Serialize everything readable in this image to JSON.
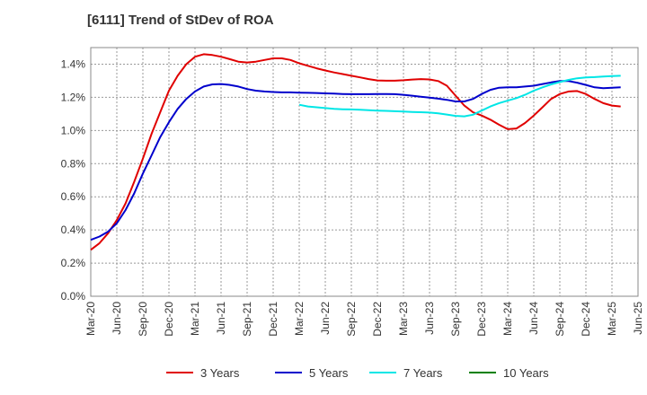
{
  "chart_data": {
    "type": "line",
    "title": "[6111]  Trend of StDev of ROA",
    "xlabel": "",
    "ylabel": "",
    "x_ticks": [
      "Mar-20",
      "Jun-20",
      "Sep-20",
      "Dec-20",
      "Mar-21",
      "Jun-21",
      "Sep-21",
      "Dec-21",
      "Mar-22",
      "Jun-22",
      "Sep-22",
      "Dec-22",
      "Mar-23",
      "Jun-23",
      "Sep-23",
      "Dec-23",
      "Mar-24",
      "Jun-24",
      "Sep-24",
      "Dec-24",
      "Mar-25",
      "Jun-25"
    ],
    "y_ticks": [
      "0.0%",
      "0.2%",
      "0.4%",
      "0.6%",
      "0.8%",
      "1.0%",
      "1.2%",
      "1.4%"
    ],
    "ylim": [
      0,
      1.5
    ],
    "grid": true,
    "legend_position": "bottom",
    "series": [
      {
        "name": "3 Years",
        "color": "#e00000",
        "points": [
          [
            "Mar-20",
            0.28
          ],
          [
            "Apr-20",
            0.32
          ],
          [
            "May-20",
            0.38
          ],
          [
            "Jun-20",
            0.46
          ],
          [
            "Jul-20",
            0.56
          ],
          [
            "Aug-20",
            0.69
          ],
          [
            "Sep-20",
            0.83
          ],
          [
            "Oct-20",
            0.98
          ],
          [
            "Nov-20",
            1.11
          ],
          [
            "Dec-20",
            1.24
          ],
          [
            "Jan-21",
            1.33
          ],
          [
            "Feb-21",
            1.4
          ],
          [
            "Mar-21",
            1.445
          ],
          [
            "Apr-21",
            1.46
          ],
          [
            "May-21",
            1.455
          ],
          [
            "Jun-21",
            1.445
          ],
          [
            "Jul-21",
            1.43
          ],
          [
            "Aug-21",
            1.415
          ],
          [
            "Sep-21",
            1.41
          ],
          [
            "Oct-21",
            1.415
          ],
          [
            "Nov-21",
            1.425
          ],
          [
            "Dec-21",
            1.435
          ],
          [
            "Jan-22",
            1.435
          ],
          [
            "Feb-22",
            1.425
          ],
          [
            "Mar-22",
            1.405
          ],
          [
            "Apr-22",
            1.39
          ],
          [
            "May-22",
            1.375
          ],
          [
            "Jun-22",
            1.362
          ],
          [
            "Jul-22",
            1.35
          ],
          [
            "Aug-22",
            1.34
          ],
          [
            "Sep-22",
            1.33
          ],
          [
            "Oct-22",
            1.32
          ],
          [
            "Nov-22",
            1.31
          ],
          [
            "Dec-22",
            1.302
          ],
          [
            "Jan-23",
            1.3
          ],
          [
            "Feb-23",
            1.3
          ],
          [
            "Mar-23",
            1.303
          ],
          [
            "Apr-23",
            1.307
          ],
          [
            "May-23",
            1.31
          ],
          [
            "Jun-23",
            1.308
          ],
          [
            "Jul-23",
            1.298
          ],
          [
            "Aug-23",
            1.27
          ],
          [
            "Sep-23",
            1.21
          ],
          [
            "Oct-23",
            1.15
          ],
          [
            "Nov-23",
            1.11
          ],
          [
            "Dec-23",
            1.09
          ],
          [
            "Jan-24",
            1.065
          ],
          [
            "Feb-24",
            1.035
          ],
          [
            "Mar-24",
            1.008
          ],
          [
            "Apr-24",
            1.012
          ],
          [
            "May-24",
            1.045
          ],
          [
            "Jun-24",
            1.09
          ],
          [
            "Jul-24",
            1.14
          ],
          [
            "Aug-24",
            1.19
          ],
          [
            "Sep-24",
            1.22
          ],
          [
            "Oct-24",
            1.235
          ],
          [
            "Nov-24",
            1.238
          ],
          [
            "Dec-24",
            1.22
          ],
          [
            "Jan-25",
            1.19
          ],
          [
            "Feb-25",
            1.165
          ],
          [
            "Mar-25",
            1.15
          ],
          [
            "Apr-25",
            1.145
          ]
        ]
      },
      {
        "name": "5 Years",
        "color": "#0000cc",
        "points": [
          [
            "Mar-20",
            0.34
          ],
          [
            "Apr-20",
            0.36
          ],
          [
            "May-20",
            0.39
          ],
          [
            "Jun-20",
            0.44
          ],
          [
            "Jul-20",
            0.52
          ],
          [
            "Aug-20",
            0.62
          ],
          [
            "Sep-20",
            0.74
          ],
          [
            "Oct-20",
            0.85
          ],
          [
            "Nov-20",
            0.96
          ],
          [
            "Dec-20",
            1.05
          ],
          [
            "Jan-21",
            1.13
          ],
          [
            "Feb-21",
            1.19
          ],
          [
            "Mar-21",
            1.235
          ],
          [
            "Apr-21",
            1.265
          ],
          [
            "May-21",
            1.278
          ],
          [
            "Jun-21",
            1.28
          ],
          [
            "Jul-21",
            1.275
          ],
          [
            "Aug-21",
            1.265
          ],
          [
            "Sep-21",
            1.25
          ],
          [
            "Oct-21",
            1.24
          ],
          [
            "Nov-21",
            1.235
          ],
          [
            "Dec-21",
            1.232
          ],
          [
            "Jan-22",
            1.23
          ],
          [
            "Feb-22",
            1.23
          ],
          [
            "Mar-22",
            1.228
          ],
          [
            "Apr-22",
            1.227
          ],
          [
            "May-22",
            1.226
          ],
          [
            "Jun-22",
            1.224
          ],
          [
            "Jul-22",
            1.222
          ],
          [
            "Aug-22",
            1.22
          ],
          [
            "Sep-22",
            1.219
          ],
          [
            "Oct-22",
            1.219
          ],
          [
            "Nov-22",
            1.219
          ],
          [
            "Dec-22",
            1.22
          ],
          [
            "Jan-23",
            1.22
          ],
          [
            "Feb-23",
            1.219
          ],
          [
            "Mar-23",
            1.215
          ],
          [
            "Apr-23",
            1.21
          ],
          [
            "May-23",
            1.204
          ],
          [
            "Jun-23",
            1.198
          ],
          [
            "Jul-23",
            1.192
          ],
          [
            "Aug-23",
            1.185
          ],
          [
            "Sep-23",
            1.175
          ],
          [
            "Oct-23",
            1.175
          ],
          [
            "Nov-23",
            1.19
          ],
          [
            "Dec-23",
            1.22
          ],
          [
            "Jan-24",
            1.245
          ],
          [
            "Feb-24",
            1.258
          ],
          [
            "Mar-24",
            1.26
          ],
          [
            "Apr-24",
            1.26
          ],
          [
            "May-24",
            1.265
          ],
          [
            "Jun-24",
            1.27
          ],
          [
            "Jul-24",
            1.28
          ],
          [
            "Aug-24",
            1.29
          ],
          [
            "Sep-24",
            1.298
          ],
          [
            "Oct-24",
            1.298
          ],
          [
            "Nov-24",
            1.288
          ],
          [
            "Dec-24",
            1.275
          ],
          [
            "Jan-25",
            1.26
          ],
          [
            "Feb-25",
            1.255
          ],
          [
            "Mar-25",
            1.258
          ],
          [
            "Apr-25",
            1.26
          ]
        ]
      },
      {
        "name": "7 Years",
        "color": "#00e6e6",
        "points": [
          [
            "Mar-22",
            1.155
          ],
          [
            "Apr-22",
            1.145
          ],
          [
            "May-22",
            1.14
          ],
          [
            "Jun-22",
            1.135
          ],
          [
            "Jul-22",
            1.13
          ],
          [
            "Aug-22",
            1.128
          ],
          [
            "Sep-22",
            1.127
          ],
          [
            "Oct-22",
            1.125
          ],
          [
            "Nov-22",
            1.122
          ],
          [
            "Dec-22",
            1.12
          ],
          [
            "Jan-23",
            1.118
          ],
          [
            "Feb-23",
            1.116
          ],
          [
            "Mar-23",
            1.114
          ],
          [
            "Apr-23",
            1.112
          ],
          [
            "May-23",
            1.11
          ],
          [
            "Jun-23",
            1.108
          ],
          [
            "Jul-23",
            1.103
          ],
          [
            "Aug-23",
            1.096
          ],
          [
            "Sep-23",
            1.088
          ],
          [
            "Oct-23",
            1.085
          ],
          [
            "Nov-23",
            1.095
          ],
          [
            "Dec-23",
            1.12
          ],
          [
            "Jan-24",
            1.145
          ],
          [
            "Feb-24",
            1.165
          ],
          [
            "Mar-24",
            1.18
          ],
          [
            "Apr-24",
            1.195
          ],
          [
            "May-24",
            1.215
          ],
          [
            "Jun-24",
            1.24
          ],
          [
            "Jul-24",
            1.26
          ],
          [
            "Aug-24",
            1.278
          ],
          [
            "Sep-24",
            1.292
          ],
          [
            "Oct-24",
            1.305
          ],
          [
            "Nov-24",
            1.315
          ],
          [
            "Dec-24",
            1.32
          ],
          [
            "Jan-25",
            1.322
          ],
          [
            "Feb-25",
            1.325
          ],
          [
            "Mar-25",
            1.328
          ],
          [
            "Apr-25",
            1.33
          ]
        ]
      },
      {
        "name": "10 Years",
        "color": "#008000",
        "points": []
      }
    ]
  }
}
